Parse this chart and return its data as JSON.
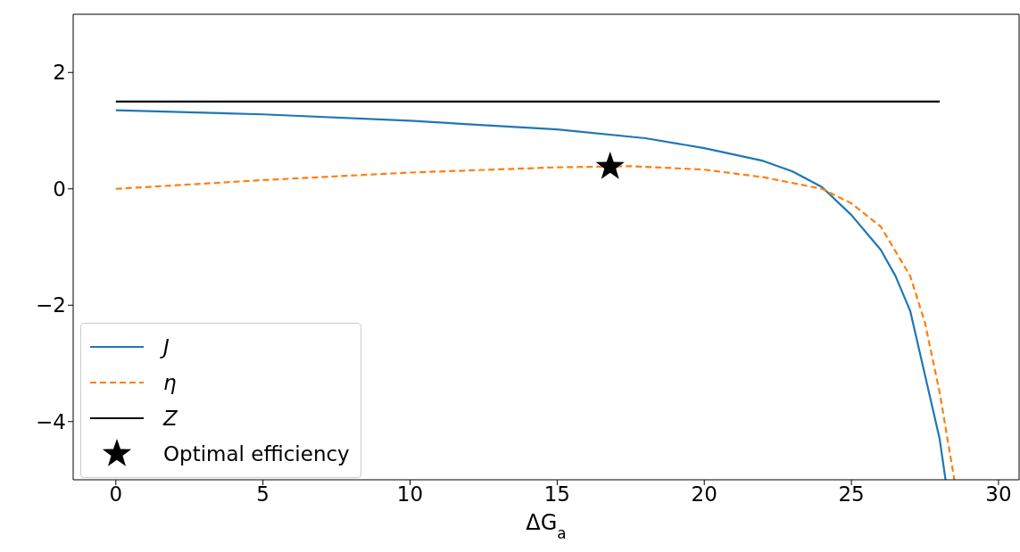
{
  "chart_data": {
    "type": "line",
    "xlabel": "ΔG$_{a}$",
    "xlim": [
      -1.45,
      30.7
    ],
    "ylim": [
      -5,
      3
    ],
    "xticks": [
      0,
      5,
      10,
      15,
      20,
      25,
      30
    ],
    "yticks": [
      -4,
      -2,
      0,
      2
    ],
    "grid": false,
    "legend": "bottom left",
    "series": [
      {
        "name": "J",
        "color": "#1f77b4",
        "line_style": "solid",
        "x": [
          0,
          5,
          10,
          15,
          18,
          20,
          22,
          23,
          24,
          25,
          26,
          26.5,
          27,
          27.5,
          28,
          28.2
        ],
        "values": [
          1.35,
          1.28,
          1.17,
          1.02,
          0.87,
          0.7,
          0.48,
          0.3,
          0.03,
          -0.45,
          -1.05,
          -1.5,
          -2.1,
          -3.2,
          -4.3,
          -5
        ]
      },
      {
        "name": "η",
        "color": "#ff7f0e",
        "line_style": "dashed",
        "x": [
          0,
          5,
          10,
          15,
          17.5,
          20,
          22,
          24,
          25,
          26,
          27,
          27.5,
          28,
          28.3,
          28.5
        ],
        "values": [
          0,
          0.15,
          0.28,
          0.37,
          0.39,
          0.33,
          0.2,
          0,
          -0.25,
          -0.65,
          -1.5,
          -2.3,
          -3.5,
          -4.4,
          -5
        ]
      },
      {
        "name": "Z",
        "color": "#000000",
        "line_style": "solid",
        "x": [
          0,
          28
        ],
        "values": [
          1.5,
          1.5
        ]
      },
      {
        "name": "Optimal efficiency",
        "type": "scatter",
        "marker": "star",
        "color": "#000000",
        "x": [
          16.8
        ],
        "values": [
          0.38
        ]
      }
    ]
  }
}
